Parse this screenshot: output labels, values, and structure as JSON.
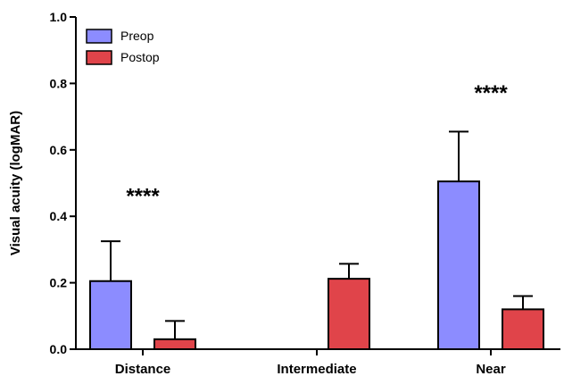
{
  "chart_data": {
    "type": "bar",
    "categories": [
      "Distance",
      "Intermediate",
      "Near"
    ],
    "series": [
      {
        "name": "Preop",
        "color": "#8c8cff",
        "values": [
          0.205,
          null,
          0.505
        ],
        "error_upper": [
          0.12,
          null,
          0.15
        ]
      },
      {
        "name": "Postop",
        "color": "#e0444a",
        "values": [
          0.03,
          0.212,
          0.12
        ],
        "error_upper": [
          0.055,
          0.045,
          0.04
        ]
      }
    ],
    "ylabel": "Visual acuity (logMAR)",
    "xlabel": "",
    "ylim": [
      0,
      1.0
    ],
    "yticks": [
      "0.0",
      "0.2",
      "0.4",
      "0.6",
      "0.8",
      "1.0"
    ],
    "annotations": [
      {
        "category": "Distance",
        "text": "****",
        "y": 0.44
      },
      {
        "category": "Near",
        "text": "****",
        "y": 0.75
      }
    ],
    "legend_position": "top-left",
    "grid": false
  }
}
